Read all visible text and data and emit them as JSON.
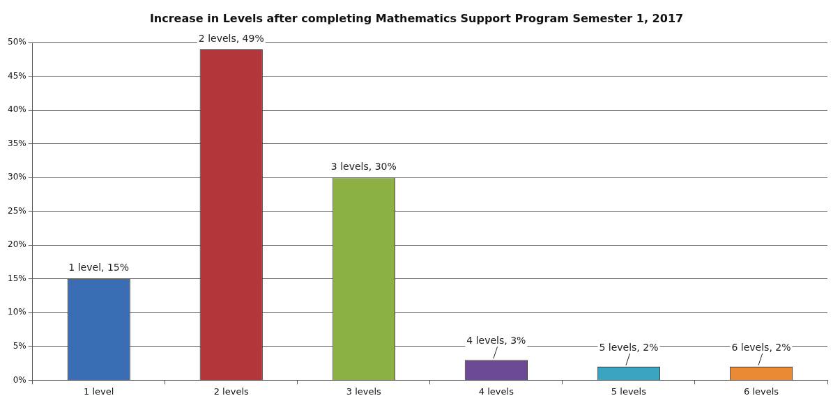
{
  "chart_data": {
    "type": "bar",
    "title": "Increase in Levels after completing Mathematics Support Program Semester 1, 2017",
    "categories": [
      "1 level",
      "2 levels",
      "3 levels",
      "4 levels",
      "5 levels",
      "6 levels"
    ],
    "values": [
      15,
      49,
      30,
      3,
      2,
      2
    ],
    "colors": [
      "#3a6db3",
      "#b3373a",
      "#8cb044",
      "#6c4a94",
      "#3aa3bf",
      "#ea8a34"
    ],
    "value_labels": [
      "1 level, 15%",
      "2 levels, 49%",
      "3 levels, 30%",
      "4 levels, 3%",
      "5 levels, 2%",
      "6 levels, 2%"
    ],
    "ylim": [
      0,
      50
    ],
    "yticks": [
      {
        "value": 0,
        "label": "0%"
      },
      {
        "value": 5,
        "label": "5%"
      },
      {
        "value": 10,
        "label": "10%"
      },
      {
        "value": 15,
        "label": "15%"
      },
      {
        "value": 20,
        "label": "20%"
      },
      {
        "value": 25,
        "label": "25%"
      },
      {
        "value": 30,
        "label": "30%"
      },
      {
        "value": 35,
        "label": "35%"
      },
      {
        "value": 40,
        "label": "40%"
      },
      {
        "value": 45,
        "label": "45%"
      },
      {
        "value": 50,
        "label": "50%"
      }
    ],
    "grid": "y",
    "legend": false
  }
}
